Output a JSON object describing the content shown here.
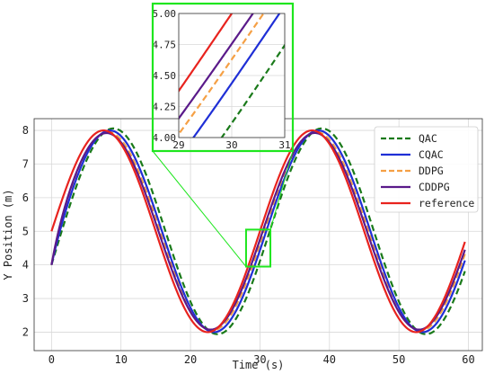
{
  "chart_data": {
    "type": "line",
    "title": "",
    "xlabel": "Time (s)",
    "ylabel": "Y Position (m)",
    "xlim": [
      -2.5,
      62
    ],
    "ylim": [
      1.45,
      8.35
    ],
    "xticks": [
      0,
      10,
      20,
      30,
      40,
      50,
      60
    ],
    "yticks": [
      2,
      3,
      4,
      5,
      6,
      7,
      8
    ],
    "grid": true,
    "legend_position": "right",
    "reference_model": {
      "center": 5,
      "amplitude": 3,
      "period": 30,
      "phase_shift": 0
    },
    "series": [
      {
        "name": "QAC",
        "color": "#1a7a1a",
        "style": "dashed",
        "delay": 1.4,
        "amp_scale": 1.02,
        "x": [
          0,
          5,
          7.5,
          10,
          15,
          20,
          22.5,
          25,
          30,
          35,
          37.5,
          40,
          45,
          50,
          52.5,
          55,
          59.5
        ],
        "y": [
          4.0,
          7.25,
          7.95,
          7.6,
          5.1,
          2.3,
          1.8,
          2.1,
          4.2,
          7.2,
          7.95,
          7.8,
          5.2,
          2.4,
          1.85,
          2.1,
          4.3
        ]
      },
      {
        "name": "CQAC",
        "color": "#1f2fd6",
        "style": "solid",
        "delay": 0.9,
        "amp_scale": 1.0,
        "x": [
          0,
          5,
          7.5,
          10,
          15,
          20,
          22.5,
          25,
          30,
          35,
          37.5,
          40,
          45,
          50,
          52.5,
          55,
          59.5
        ],
        "y": [
          4.0,
          7.4,
          8.0,
          7.7,
          5.1,
          2.2,
          1.95,
          2.2,
          4.5,
          7.4,
          8.0,
          7.7,
          5.1,
          2.3,
          1.95,
          2.25,
          4.5
        ]
      },
      {
        "name": "DDPG",
        "color": "#f5a045",
        "style": "dashed",
        "delay": 0.6,
        "amp_scale": 0.985,
        "x": [
          0,
          5,
          7.5,
          10,
          15,
          20,
          22.5,
          25,
          30,
          35,
          37.5,
          40,
          45,
          50,
          52.5,
          55,
          59.5
        ],
        "y": [
          4.0,
          7.5,
          8.0,
          7.8,
          5.2,
          2.3,
          2.05,
          2.3,
          4.6,
          7.5,
          8.05,
          7.8,
          5.2,
          2.4,
          2.1,
          2.35,
          4.7
        ]
      },
      {
        "name": "CDDPG",
        "color": "#5a1a8a",
        "style": "solid",
        "delay": 0.4,
        "amp_scale": 0.975,
        "x": [
          0,
          5,
          7.5,
          10,
          15,
          20,
          22.5,
          25,
          30,
          35,
          37.5,
          40,
          45,
          50,
          52.5,
          55,
          59.5
        ],
        "y": [
          4.0,
          7.55,
          8.0,
          7.8,
          5.2,
          2.35,
          2.05,
          2.35,
          4.65,
          7.55,
          8.0,
          7.8,
          5.2,
          2.4,
          2.05,
          2.4,
          4.7
        ]
      },
      {
        "name": "reference",
        "color": "#e8231e",
        "style": "solid",
        "delay": 0.0,
        "amp_scale": 1.0,
        "x": [
          0,
          5,
          7.5,
          10,
          15,
          20,
          22.5,
          25,
          30,
          35,
          37.5,
          40,
          45,
          50,
          52.5,
          55,
          59.5
        ],
        "y": [
          5.0,
          7.6,
          8.0,
          7.6,
          5.0,
          2.4,
          2.0,
          2.4,
          5.0,
          7.6,
          8.0,
          7.6,
          5.0,
          2.4,
          2.0,
          2.4,
          4.8
        ]
      }
    ],
    "zoom_box": {
      "xlim": [
        28,
        31.5
      ],
      "ylim": [
        3.95,
        5.05
      ]
    },
    "inset": {
      "xlim": [
        29,
        31
      ],
      "ylim": [
        4.0,
        5.0
      ],
      "xticks": [
        29,
        30,
        31
      ],
      "yticks": [
        4.0,
        4.25,
        4.5,
        4.75,
        5.0
      ],
      "xtick_labels": [
        "29",
        "30",
        "31"
      ],
      "ytick_labels": [
        "4.00",
        "4.25",
        "4.50",
        "4.75",
        "5.00"
      ]
    },
    "colors": {
      "highlight": "#1ee61e",
      "grid": "#d8d8d8"
    }
  }
}
